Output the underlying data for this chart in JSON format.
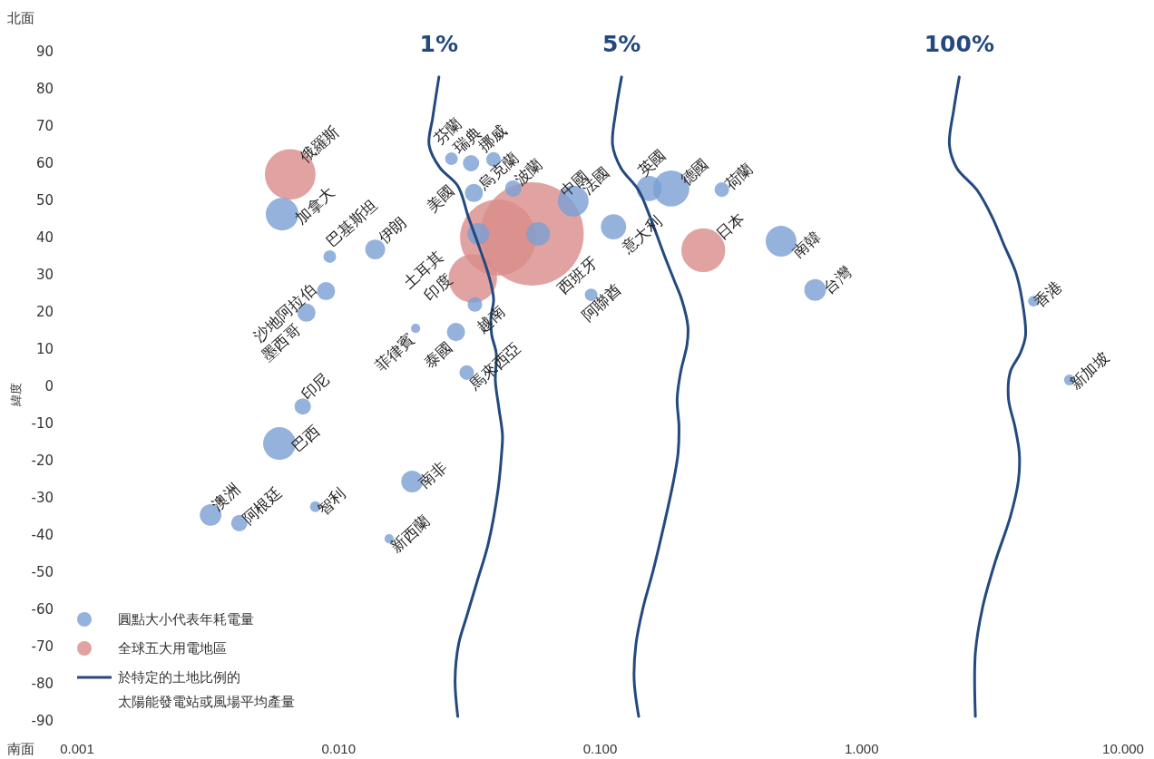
{
  "chart_data": {
    "type": "bubble",
    "ylabel": "緯度",
    "log": "x",
    "grid": false,
    "legend": "bottom left",
    "xlim": [
      0.001,
      10
    ],
    "ylim": [
      -90,
      90
    ],
    "xticks": [
      {
        "value": 0.001,
        "label": "0.001"
      },
      {
        "value": 0.01,
        "label": "0.010"
      },
      {
        "value": 0.1,
        "label": "0.100"
      },
      {
        "value": 1,
        "label": "1.000"
      },
      {
        "value": 10,
        "label": "10.000"
      }
    ],
    "yticks": [
      -90,
      -80,
      -70,
      -60,
      -50,
      -40,
      -30,
      -20,
      -10,
      0,
      10,
      20,
      30,
      40,
      50,
      60,
      70,
      80,
      90
    ],
    "series": [
      {
        "name": "圓點大小代表年耗電量",
        "color": "#7b9fd4",
        "x": [
          0.00608,
          0.00925,
          0.0138,
          0.00895,
          0.00753,
          0.00729,
          0.00594,
          0.00324,
          0.00417,
          0.00815,
          0.0191,
          0.0156,
          0.0197,
          0.0281,
          0.0309,
          0.0332,
          0.0342,
          0.058,
          0.027,
          0.0321,
          0.0391,
          0.0329,
          0.0465,
          0.0789,
          0.1125,
          0.0924,
          0.154,
          0.187,
          0.292,
          0.492,
          0.664,
          4.54,
          6.23
        ],
        "values": [
          46.3,
          34.9,
          36.8,
          25.6,
          19.8,
          -5.4,
          -15.4,
          -34.6,
          -36.8,
          -32.4,
          -25.6,
          -41,
          15.6,
          14.6,
          3.7,
          22,
          41,
          41,
          61.2,
          60,
          61,
          52,
          53.2,
          49.8,
          42.9,
          24.6,
          53.2,
          53.2,
          52.9,
          39,
          25.9,
          22.9,
          1.7
        ],
        "sizes": [
          0.1,
          0.015,
          0.037,
          0.031,
          0.031,
          0.025,
          0.1,
          0.044,
          0.025,
          0.011,
          0.044,
          0.008,
          0.008,
          0.031,
          0.02,
          0.02,
          0.044,
          0.052,
          0.015,
          0.025,
          0.02,
          0.031,
          0.025,
          0.089,
          0.06,
          0.015,
          0.06,
          0.123,
          0.02,
          0.089,
          0.044,
          0.011,
          0.011
        ]
      },
      {
        "name": "全球五大用電地區",
        "color": "#d98c8a",
        "x": [
          0.00653,
          0.0407,
          0.0549,
          0.0326,
          0.248
        ],
        "values": [
          57,
          40,
          41,
          29,
          36.6
        ],
        "sizes": [
          0.24,
          0.54,
          1,
          0.22,
          0.18
        ]
      },
      {
        "type": "line",
        "name": "於特定的土地比例的太陽能發電站或風場平均產量",
        "color": "#24497f",
        "x": [
          0.02419,
          0.02289,
          0.02218,
          0.02438,
          0.02855,
          0.03139,
          0.03477,
          0.03762,
          0.03914,
          0.03822,
          0.03852,
          0.04007,
          0.03975,
          0.04102,
          0.04233,
          0.042,
          0.0407,
          0.03732,
          0.03395,
          0.03088,
          0.02877,
          0.02788,
          0.02855
        ],
        "values": [
          83.2,
          72.2,
          64.9,
          58.8,
          53.9,
          45.4,
          36.8,
          29.5,
          23.4,
          18.5,
          13.7,
          8.8,
          1.5,
          -5.9,
          -13.2,
          -18,
          -27.8,
          -42.4,
          -52.2,
          -61.9,
          -69.3,
          -79,
          -88.8
        ]
      },
      {
        "type": "line",
        "color": "#24497f",
        "x": [
          0.1208,
          0.1152,
          0.1116,
          0.1199,
          0.1404,
          0.1555,
          0.1751,
          0.1924,
          0.2049,
          0.2166,
          0.2149,
          0.2033,
          0.197,
          0.2002,
          0.1986,
          0.1909,
          0.1751,
          0.1592,
          0.146,
          0.1371,
          0.1349,
          0.1404
        ],
        "values": [
          83.2,
          74.6,
          64.9,
          58.8,
          52.7,
          45.4,
          35.6,
          28.3,
          23.4,
          16.1,
          11.2,
          3.9,
          -3.4,
          -10.7,
          -18,
          -25.4,
          -37.6,
          -49.8,
          -59.5,
          -69.3,
          -79,
          -88.8
        ]
      },
      {
        "type": "line",
        "color": "#24497f",
        "x": [
          2.362,
          2.253,
          2.166,
          2.307,
          2.766,
          3.162,
          3.503,
          3.882,
          4.102,
          4.233,
          4.037,
          3.703,
          3.644,
          3.852,
          4.007,
          3.975,
          3.703,
          3.238,
          2.9,
          2.722,
          2.722
        ],
        "values": [
          83.2,
          74.6,
          64.9,
          58.8,
          52.7,
          45.4,
          38,
          30.7,
          23.4,
          13.7,
          8.8,
          3.9,
          -3.4,
          -10.7,
          -18,
          -25.4,
          -35.1,
          -47.3,
          -59.5,
          -71.7,
          -88.8
        ]
      }
    ],
    "annotations": [
      "北面",
      "南面",
      {
        "text": "1%",
        "x": 0.02419,
        "y": 83.2
      },
      {
        "text": "5%",
        "x": 0.1208,
        "y": 83.2
      },
      {
        "text": "100%",
        "x": 2.362,
        "y": 83.2
      },
      {
        "text": "加拿大",
        "x": 0.00608,
        "y": 46.3
      },
      {
        "text": "巴基斯坦",
        "x": 0.00925,
        "y": 34.9
      },
      {
        "text": "伊朗",
        "x": 0.0138,
        "y": 36.8
      },
      {
        "text": "沙地阿拉伯",
        "x": 0.00895,
        "y": 25.6
      },
      {
        "text": "墨西哥",
        "x": 0.00753,
        "y": 19.8
      },
      {
        "text": "印尼",
        "x": 0.00729,
        "y": -5.4
      },
      {
        "text": "巴西",
        "x": 0.00594,
        "y": -15.4
      },
      {
        "text": "澳洲",
        "x": 0.00324,
        "y": -34.6
      },
      {
        "text": "阿根廷",
        "x": 0.00417,
        "y": -36.8
      },
      {
        "text": "智利",
        "x": 0.00815,
        "y": -32.4
      },
      {
        "text": "南非",
        "x": 0.0191,
        "y": -25.6
      },
      {
        "text": "新西蘭",
        "x": 0.0156,
        "y": -41
      },
      {
        "text": "菲律賓",
        "x": 0.0197,
        "y": 15.6
      },
      {
        "text": "泰國",
        "x": 0.0281,
        "y": 14.6
      },
      {
        "text": "馬來西亞",
        "x": 0.0309,
        "y": 3.7
      },
      {
        "text": "越南",
        "x": 0.0332,
        "y": 22
      },
      {
        "text": "土耳其",
        "x": 0.0342,
        "y": 41
      },
      {
        "text": "西班牙",
        "x": 0.058,
        "y": 41
      },
      {
        "text": "芬蘭",
        "x": 0.027,
        "y": 61.2
      },
      {
        "text": "瑞典",
        "x": 0.0321,
        "y": 60
      },
      {
        "text": "挪威",
        "x": 0.0391,
        "y": 61
      },
      {
        "text": "烏克蘭",
        "x": 0.0329,
        "y": 52
      },
      {
        "text": "波蘭",
        "x": 0.0465,
        "y": 53.2
      },
      {
        "text": "法國",
        "x": 0.0789,
        "y": 49.8
      },
      {
        "text": "意大利",
        "x": 0.1125,
        "y": 42.9
      },
      {
        "text": "阿聯酋",
        "x": 0.0924,
        "y": 24.6
      },
      {
        "text": "英國",
        "x": 0.154,
        "y": 53.2
      },
      {
        "text": "德國",
        "x": 0.187,
        "y": 53.2
      },
      {
        "text": "荷蘭",
        "x": 0.292,
        "y": 52.9
      },
      {
        "text": "南韓",
        "x": 0.492,
        "y": 39
      },
      {
        "text": "台灣",
        "x": 0.664,
        "y": 25.9
      },
      {
        "text": "香港",
        "x": 4.54,
        "y": 22.9
      },
      {
        "text": "新加坡",
        "x": 6.23,
        "y": 1.7
      },
      {
        "text": "俄羅斯",
        "x": 0.00653,
        "y": 57
      },
      {
        "text": "美國",
        "x": 0.0407,
        "y": 40
      },
      {
        "text": "中國",
        "x": 0.0549,
        "y": 41
      },
      {
        "text": "印度",
        "x": 0.0326,
        "y": 29
      },
      {
        "text": "日本",
        "x": 0.248,
        "y": 36.6
      }
    ]
  }
}
